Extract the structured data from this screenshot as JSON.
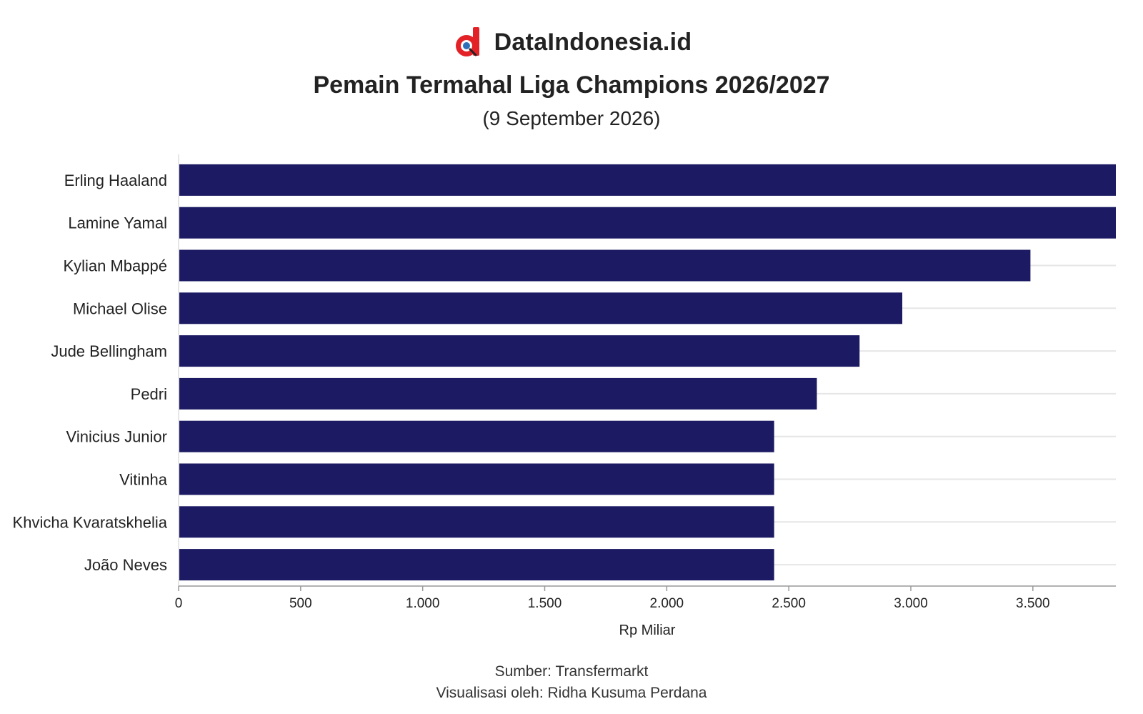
{
  "brand": {
    "name": "DataIndonesia.id",
    "logo_icon": "dataindonesia-logo-icon"
  },
  "source": "Sumber: Transfermarkt",
  "credit": "Visualisasi oleh: Ridha Kusuma Perdana",
  "colors": {
    "bar": "#1b1a62",
    "grid": "#e6e6e6",
    "axis": "#999999",
    "logo_red": "#e32227"
  },
  "chart_data": {
    "type": "bar",
    "orientation": "horizontal",
    "title": "Pemain Termahal Liga Champions 2026/2027",
    "subtitle": "(9 September 2026)",
    "xlabel": "Rp Miliar",
    "ylabel": "",
    "xlim": [
      0,
      3840
    ],
    "xticks": [
      0,
      500,
      1000,
      1500,
      2000,
      2500,
      3000,
      3500
    ],
    "xtick_labels": [
      "0",
      "500",
      "1.000",
      "1.500",
      "2.000",
      "2.500",
      "3.000",
      "3.500"
    ],
    "grid": true,
    "legend": "none",
    "categories": [
      "Erling Haaland",
      "Lamine Yamal",
      "Kylian Mbappé",
      "Michael Olise",
      "Jude Bellingham",
      "Pedri",
      "Vinicius Junior",
      "Vitinha",
      "Khvicha Kvaratskhelia",
      "João Neves"
    ],
    "values": [
      3840,
      3840,
      3490,
      2965,
      2790,
      2615,
      2440,
      2440,
      2440,
      2440
    ]
  }
}
